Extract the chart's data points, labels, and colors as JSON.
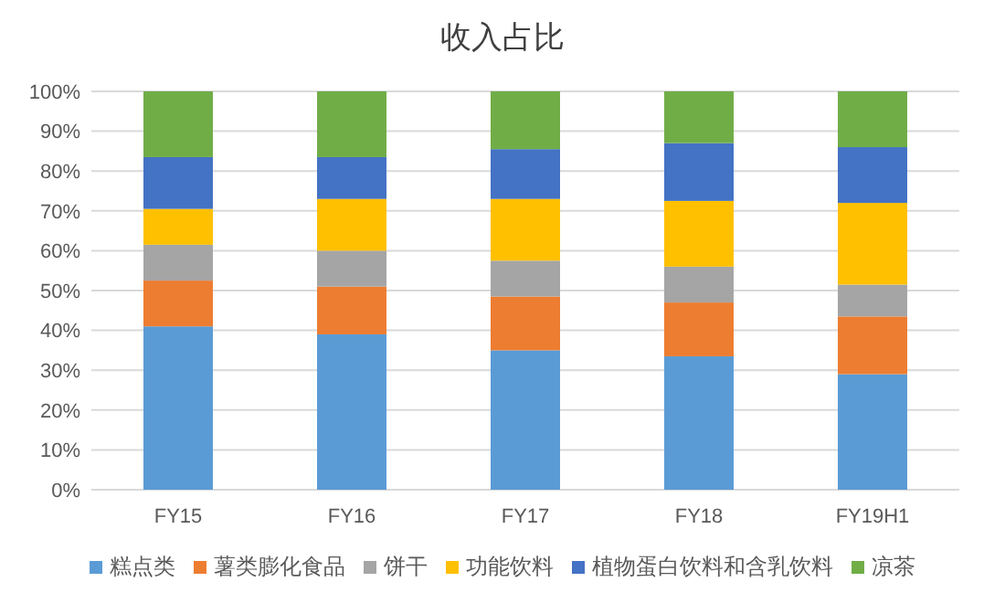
{
  "chart_data": {
    "type": "bar",
    "title": "收入占比",
    "stacked": true,
    "categories": [
      "FY15",
      "FY16",
      "FY17",
      "FY18",
      "FY19H1"
    ],
    "series": [
      {
        "name": "糕点类",
        "color": "#5b9bd5",
        "values": [
          41,
          39,
          35,
          33.5,
          29
        ]
      },
      {
        "name": "薯类膨化食品",
        "color": "#ed7d31",
        "values": [
          11.5,
          12,
          13.5,
          13.5,
          14.5
        ]
      },
      {
        "name": "饼干",
        "color": "#a5a5a5",
        "values": [
          9,
          9,
          9,
          9,
          8
        ]
      },
      {
        "name": "功能饮料",
        "color": "#ffc000",
        "values": [
          9,
          13,
          15.5,
          16.5,
          20.5
        ]
      },
      {
        "name": "植物蛋白饮料和含乳饮料",
        "color": "#4472c4",
        "values": [
          13,
          10.5,
          12.5,
          14.5,
          14
        ]
      },
      {
        "name": "凉茶",
        "color": "#70ad47",
        "values": [
          16.5,
          16.5,
          14.5,
          13,
          14
        ]
      }
    ],
    "ylim": [
      0,
      100
    ],
    "yticks": [
      {
        "value": 0,
        "label": "0%"
      },
      {
        "value": 10,
        "label": "10%"
      },
      {
        "value": 20,
        "label": "20%"
      },
      {
        "value": 30,
        "label": "30%"
      },
      {
        "value": 40,
        "label": "40%"
      },
      {
        "value": 50,
        "label": "50%"
      },
      {
        "value": 60,
        "label": "60%"
      },
      {
        "value": 70,
        "label": "70%"
      },
      {
        "value": 80,
        "label": "80%"
      },
      {
        "value": 90,
        "label": "90%"
      },
      {
        "value": 100,
        "label": "100%"
      }
    ],
    "grid": "y",
    "legend": "bottom"
  }
}
